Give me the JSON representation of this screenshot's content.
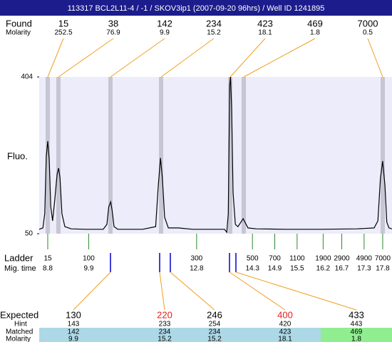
{
  "title": "113317  BCL2L11-4 / -1 / SKOV3ip1 (2007-09-20 96hrs) / Well ID 1241895",
  "found": {
    "label": "Found",
    "molarity_label": "Molarity",
    "sizes": [
      15,
      38,
      142,
      234,
      423,
      469,
      7000
    ],
    "molarity": [
      252.5,
      76.9,
      9.9,
      15.2,
      18.1,
      1.8,
      0.5
    ]
  },
  "chart_data": {
    "type": "line",
    "y_label": "Fluo.",
    "x": [
      8.57,
      8.67,
      8.72,
      8.76,
      8.8,
      8.84,
      8.88,
      8.93,
      8.99,
      9.05,
      9.09,
      9.13,
      9.18,
      9.26,
      9.43,
      9.82,
      10.29,
      10.39,
      10.44,
      10.49,
      10.53,
      10.58,
      10.68,
      11.35,
      11.7,
      11.77,
      11.83,
      11.88,
      11.94,
      12.04,
      12.31,
      12.69,
      13.26,
      13.55,
      13.61,
      13.65,
      13.69,
      13.71,
      13.74,
      13.78,
      13.84,
      13.91,
      13.99,
      14.05,
      14.1,
      14.18,
      14.41,
      15.18,
      16.14,
      17.1,
      17.57,
      17.67,
      17.74,
      17.8,
      17.86,
      17.91,
      17.97,
      18.05
    ],
    "series": [
      {
        "color": "#000000",
        "values": [
          60,
          63,
          95,
          224,
          259,
          216,
          111,
          79,
          127,
          184,
          198,
          176,
          95,
          66,
          61,
          60,
          60,
          71,
          111,
          122,
          103,
          66,
          60,
          60,
          66,
          159,
          221,
          176,
          87,
          63,
          63,
          60,
          60,
          60,
          53,
          95,
          385,
          404,
          336,
          143,
          71,
          66,
          76,
          84,
          76,
          63,
          61,
          60,
          60,
          61,
          63,
          79,
          176,
          214,
          159,
          76,
          63,
          61
        ]
      }
    ],
    "xlim": [
      8.57,
      18.05
    ],
    "ylim": [
      50,
      404
    ],
    "yticks": [
      50,
      404
    ]
  },
  "ladder": {
    "label": "Ladder",
    "time_label": "Mig. time",
    "sizes": [
      15,
      100,
      300,
      500,
      700,
      1100,
      1900,
      2900,
      4900,
      7000
    ],
    "times": [
      8.8,
      9.9,
      12.8,
      14.3,
      14.9,
      15.5,
      16.2,
      16.7,
      17.3,
      17.8
    ]
  },
  "expected": {
    "label": "Expected",
    "hint_label": "Hint",
    "matched_label": "Matched",
    "molarity_label": "Molarity",
    "sizes": [
      130,
      220,
      246,
      400,
      433
    ],
    "size_colors": [
      "#000000",
      "#e02020",
      "#000000",
      "#e02020",
      "#000000"
    ],
    "hint": [
      143,
      233,
      254,
      420,
      443
    ],
    "matched": [
      142,
      234,
      234,
      423,
      469
    ],
    "molarity": [
      9.9,
      15.2,
      15.2,
      18.1,
      1.8
    ],
    "cell_colors": [
      "#add8e6",
      "#add8e6",
      "#add8e6",
      "#add8e6",
      "#90ee90"
    ]
  }
}
